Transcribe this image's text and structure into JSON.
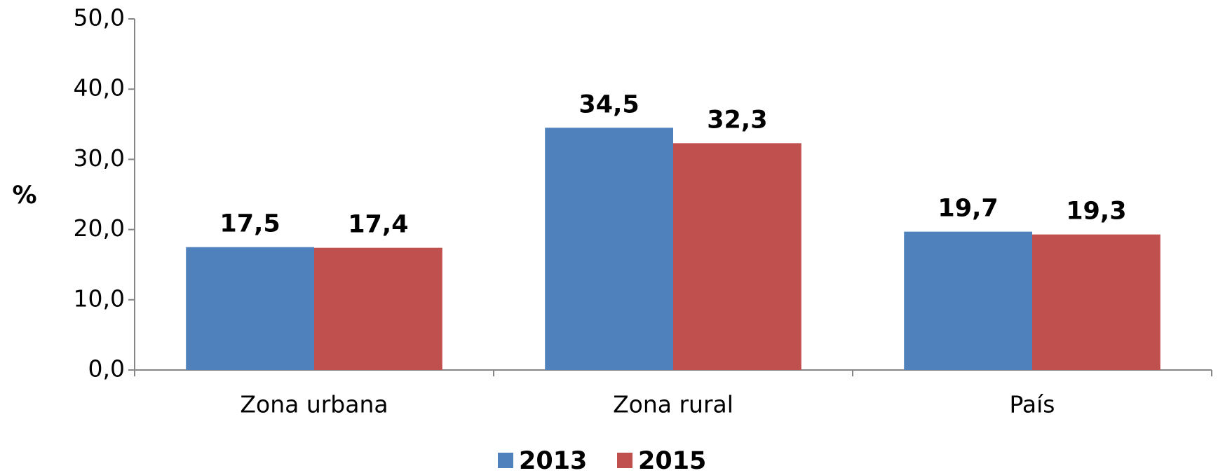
{
  "chart_data": {
    "type": "bar",
    "y_label": "%",
    "categories": [
      "Zona urbana",
      "Zona rural",
      "País"
    ],
    "series": [
      {
        "name": "2013",
        "color": "#4f81bd",
        "values": [
          17.5,
          34.5,
          19.7
        ],
        "value_labels": [
          "17,5",
          "34,5",
          "19,7"
        ]
      },
      {
        "name": "2015",
        "color": "#c0504d",
        "values": [
          17.4,
          32.3,
          19.3
        ],
        "value_labels": [
          "17,4",
          "32,3",
          "19,3"
        ]
      }
    ],
    "ylim": [
      0,
      50
    ],
    "yticks": [
      {
        "value": 0,
        "label": "0,0"
      },
      {
        "value": 10,
        "label": "10,0"
      },
      {
        "value": 20,
        "label": "20,0"
      },
      {
        "value": 30,
        "label": "30,0"
      },
      {
        "value": 40,
        "label": "40,0"
      },
      {
        "value": 50,
        "label": "50,0"
      }
    ],
    "grid": false,
    "legend": "bottom"
  }
}
